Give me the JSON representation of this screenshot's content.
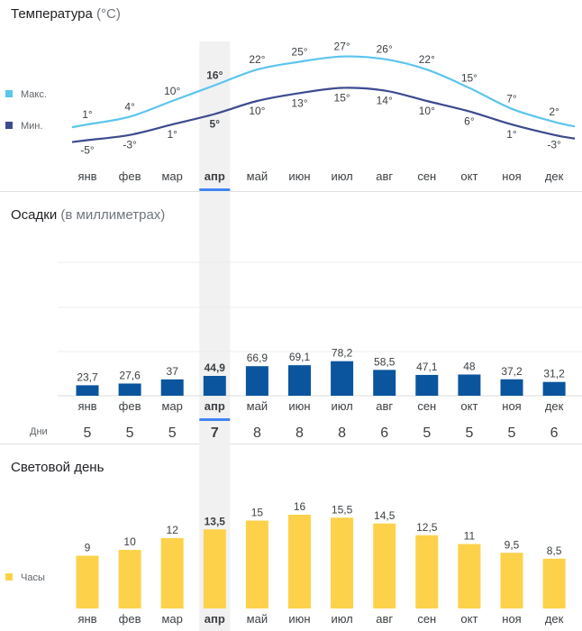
{
  "temperature": {
    "title": "Температура",
    "unit": "(°C)",
    "legend_max": "Макс.",
    "legend_min": "Мин.",
    "color_max": "#5bc5ee",
    "color_min": "#3c4a8f"
  },
  "precipitation": {
    "title": "Осадки",
    "unit": "(в миллиметрах)",
    "days_label": "Дни",
    "color": "#0a559e"
  },
  "daylight": {
    "title": "Световой день",
    "legend": "Часы",
    "color": "#fdd24a"
  },
  "highlight": {
    "month_index": 3,
    "underline_color": "#4285f4",
    "band_color": "#f1f1f1"
  },
  "chart_data": [
    {
      "type": "line",
      "title": "Температура (°C)",
      "categories": [
        "янв",
        "фев",
        "мар",
        "апр",
        "май",
        "июн",
        "июл",
        "авг",
        "сен",
        "окт",
        "ноя",
        "дек"
      ],
      "series": [
        {
          "name": "Макс.",
          "values": [
            1,
            4,
            10,
            16,
            22,
            25,
            27,
            26,
            22,
            15,
            7,
            2
          ],
          "labels": [
            "1°",
            "4°",
            "10°",
            "16°",
            "22°",
            "25°",
            "27°",
            "26°",
            "22°",
            "15°",
            "7°",
            "2°"
          ]
        },
        {
          "name": "Мин.",
          "values": [
            -5,
            -3,
            1,
            5,
            10,
            13,
            15,
            14,
            10,
            6,
            1,
            -3
          ],
          "labels": [
            "-5°",
            "-3°",
            "1°",
            "5°",
            "10°",
            "13°",
            "15°",
            "14°",
            "10°",
            "6°",
            "1°",
            "-3°"
          ]
        }
      ]
    },
    {
      "type": "bar",
      "title": "Осадки (в миллиметрах)",
      "categories": [
        "янв",
        "фев",
        "мар",
        "апр",
        "май",
        "июн",
        "июл",
        "авг",
        "сен",
        "окт",
        "ноя",
        "дек"
      ],
      "values": [
        23.7,
        27.6,
        37,
        44.9,
        66.9,
        69.1,
        78.2,
        58.5,
        47.1,
        48,
        37.2,
        31.2
      ],
      "value_labels": [
        "23,7",
        "27,6",
        "37",
        "44,9",
        "66,9",
        "69,1",
        "78,2",
        "58,5",
        "47,1",
        "48",
        "37,2",
        "31,2"
      ],
      "days": [
        "5",
        "5",
        "5",
        "7",
        "8",
        "8",
        "8",
        "6",
        "5",
        "5",
        "5",
        "6"
      ],
      "grid": true
    },
    {
      "type": "bar",
      "title": "Световой день",
      "categories": [
        "янв",
        "фев",
        "мар",
        "апр",
        "май",
        "июн",
        "июл",
        "авг",
        "сен",
        "окт",
        "ноя",
        "дек"
      ],
      "series": [
        {
          "name": "Часы",
          "values": [
            9,
            10,
            12,
            13.5,
            15,
            16,
            15.5,
            14.5,
            12.5,
            11,
            9.5,
            8.5
          ]
        }
      ],
      "value_labels": [
        "9",
        "10",
        "12",
        "13,5",
        "15",
        "16",
        "15,5",
        "14,5",
        "12,5",
        "11",
        "9,5",
        "8,5"
      ]
    }
  ]
}
